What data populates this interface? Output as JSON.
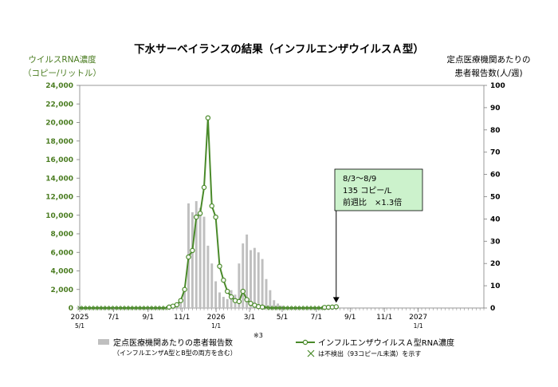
{
  "title": "下水サーベイランスの結果（インフルエンザウイルスＡ型）",
  "left_axis_label": [
    "ウイルスRNA濃度",
    "（コピー/リットル）"
  ],
  "right_axis_label": [
    "定点医療機関あたりの",
    "患者報告数(人/週)"
  ],
  "legend": {
    "bar_label": "定点医療機関あたりの患者報告数",
    "bar_note": "（インフルエンザA型とB型の両方を含む）",
    "bar_superscript": "※3",
    "line_label": "インフルエンザウイルスＡ型RNA濃度",
    "line_note": "は不検出（93コピー/L未満）を示す"
  },
  "annotation": {
    "line1": "8/3～8/9",
    "line2": "135 コピー/L",
    "line3": "前週比　×1.3倍",
    "target_week": 66
  },
  "colors": {
    "line": "#4a8a2a",
    "bar": "#bfbfbf",
    "annotation_bg": "#ccf2cc",
    "left_axis_text": "#4a7c20"
  },
  "chart_data": {
    "type": "bar+line",
    "x_unit": "weeks from 2025-05-01",
    "x_range": [
      0,
      104
    ],
    "x_ticks": [
      {
        "x": 0,
        "label": "2025",
        "sub": "5/1"
      },
      {
        "x": 8.7,
        "label": "7/1",
        "sub": ""
      },
      {
        "x": 17.6,
        "label": "9/1",
        "sub": ""
      },
      {
        "x": 26.3,
        "label": "11/1",
        "sub": ""
      },
      {
        "x": 35.1,
        "label": "2026",
        "sub": "1/1"
      },
      {
        "x": 43.7,
        "label": "3/1",
        "sub": ""
      },
      {
        "x": 52.1,
        "label": "5/1",
        "sub": ""
      },
      {
        "x": 60.9,
        "label": "7/1",
        "sub": ""
      },
      {
        "x": 69.6,
        "label": "9/1",
        "sub": ""
      },
      {
        "x": 78.4,
        "label": "11/1",
        "sub": ""
      },
      {
        "x": 87.1,
        "label": "2027",
        "sub": "1/1"
      }
    ],
    "y_left": {
      "min": 0,
      "max": 24000,
      "step": 2000,
      "labels": [
        "0",
        "2,000",
        "4,000",
        "6,000",
        "8,000",
        "10,000",
        "12,000",
        "14,000",
        "16,000",
        "18,000",
        "20,000",
        "22,000",
        "24,000"
      ]
    },
    "y_right": {
      "min": 0,
      "max": 100,
      "step": 10,
      "labels": [
        "0",
        "10",
        "20",
        "30",
        "40",
        "50",
        "60",
        "70",
        "80",
        "90",
        "100"
      ]
    },
    "bars": {
      "name": "定点医療機関あたりの患者報告数",
      "weeks": [
        23,
        24,
        25,
        26,
        27,
        28,
        29,
        30,
        31,
        32,
        33,
        34,
        35,
        36,
        37,
        38,
        39,
        40,
        41,
        42,
        43,
        44,
        45,
        46,
        47,
        48,
        49,
        50,
        51,
        52,
        53,
        54,
        55
      ],
      "values": [
        0.5,
        1.0,
        2.0,
        4.0,
        8.0,
        47.0,
        43.0,
        48.0,
        45.0,
        41.0,
        28.0,
        20.0,
        12.0,
        7.0,
        5.0,
        4.0,
        8.0,
        6.0,
        20.0,
        29.0,
        33.0,
        26.0,
        27.0,
        25.0,
        22.0,
        13.0,
        8.0,
        3.5,
        2.0,
        1.0,
        0.5,
        0.3,
        0.2
      ]
    },
    "line": {
      "name": "インフルエンザウイルスＡ型RNA濃度",
      "weeks": [
        0,
        1,
        2,
        3,
        4,
        5,
        6,
        7,
        8,
        9,
        10,
        11,
        12,
        13,
        14,
        15,
        16,
        17,
        18,
        19,
        20,
        21,
        22,
        23,
        24,
        25,
        26,
        27,
        28,
        29,
        30,
        31,
        32,
        33,
        34,
        35,
        36,
        37,
        38,
        39,
        40,
        41,
        42,
        43,
        44,
        45,
        46,
        47,
        48,
        49,
        50,
        51,
        52,
        53,
        54,
        55,
        56,
        57,
        58,
        59,
        60,
        61,
        62,
        63,
        64,
        65,
        66
      ],
      "values": [
        0,
        0,
        0,
        0,
        0,
        0,
        0,
        0,
        0,
        0,
        0,
        0,
        0,
        0,
        0,
        0,
        0,
        0,
        0,
        0,
        0,
        0,
        0,
        100,
        200,
        350,
        800,
        2000,
        5500,
        6200,
        9800,
        10200,
        13000,
        20500,
        11000,
        9800,
        4500,
        3000,
        1800,
        1200,
        800,
        700,
        1800,
        900,
        500,
        300,
        150,
        100,
        50,
        0,
        0,
        0,
        0,
        0,
        0,
        0,
        0,
        0,
        0,
        0,
        0,
        0,
        0,
        60,
        80,
        100,
        135
      ],
      "not_detected_weeks": [
        0,
        1,
        2,
        3,
        4,
        5,
        6,
        7,
        8,
        9,
        10,
        11,
        12,
        13,
        14,
        15,
        16,
        17,
        18,
        19,
        20,
        21,
        22,
        48,
        49,
        50,
        51,
        52,
        53,
        54,
        55,
        56,
        57,
        58,
        59,
        60,
        61,
        62
      ]
    }
  }
}
